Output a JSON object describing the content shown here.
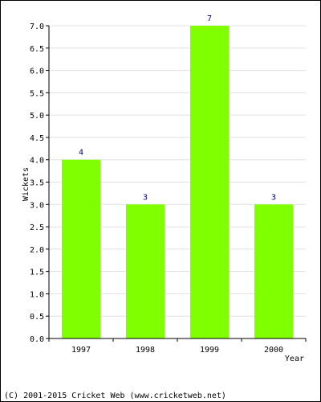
{
  "chart_data": {
    "type": "bar",
    "categories": [
      "1997",
      "1998",
      "1999",
      "2000"
    ],
    "values": [
      4,
      3,
      7,
      3
    ],
    "data_labels": [
      "4",
      "3",
      "7",
      "3"
    ],
    "title": "",
    "xlabel": "Year",
    "ylabel": "Wickets",
    "ylim": [
      0,
      7
    ],
    "ytick_step": 0.5,
    "yticks": [
      "0.0",
      "0.5",
      "1.0",
      "1.5",
      "2.0",
      "2.5",
      "3.0",
      "3.5",
      "4.0",
      "4.5",
      "5.0",
      "5.5",
      "6.0",
      "6.5",
      "7.0"
    ],
    "grid": true,
    "legend": "none",
    "bar_color": "#80ff00",
    "grid_color": "#e0e0e0"
  },
  "footer": {
    "copyright": "(C) 2001-2015 Cricket Web (www.cricketweb.net)"
  }
}
